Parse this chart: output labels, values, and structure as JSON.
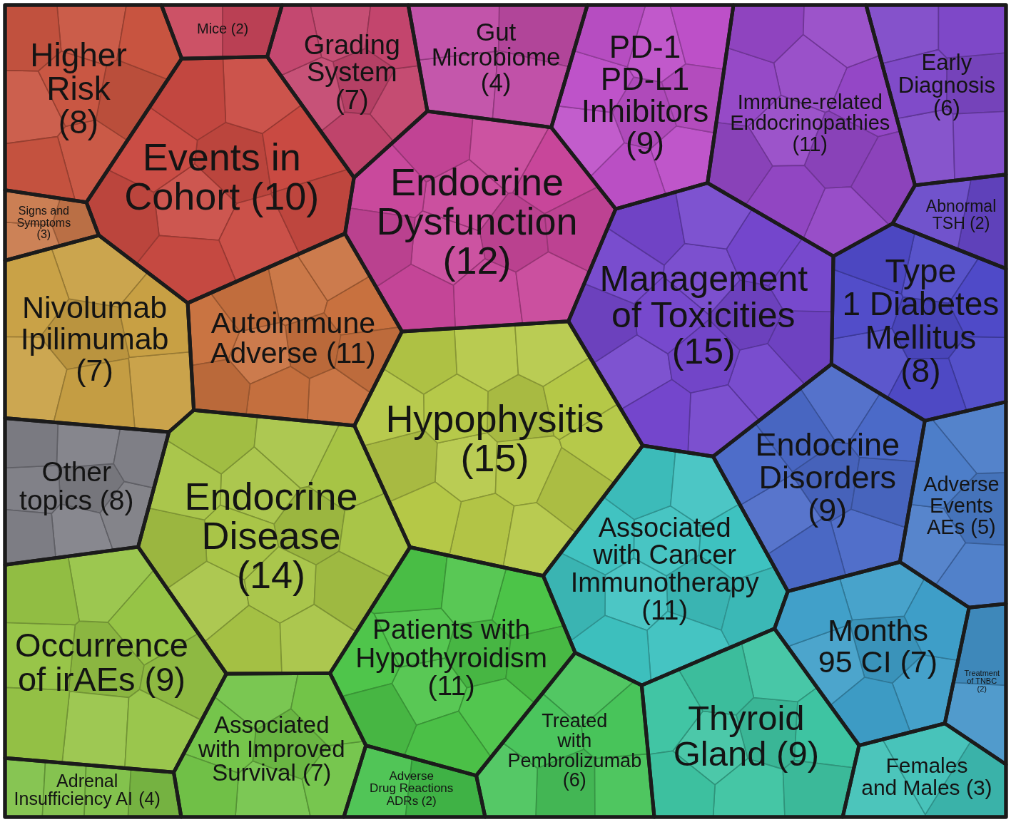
{
  "chart_data": {
    "type": "other",
    "categories": [
      "Higher Risk",
      "Mice",
      "Grading System",
      "Gut Microbiome",
      "PD-1 PD-L1 Inhibitors",
      "Immune-related Endocrinopathies",
      "Early Diagnosis",
      "Events in Cohort",
      "Endocrine Dysfunction",
      "Abnormal TSH",
      "Signs and Symptoms",
      "Management of Toxicities",
      "Type 1 Diabetes Mellitus",
      "Autoimmune Adverse",
      "Nivolumab Ipilimumab",
      "Hypophysitis",
      "Endocrine Disorders",
      "Other topics",
      "Endocrine Disease",
      "Adverse Events AEs",
      "Associated with Cancer Immunotherapy",
      "Occurrence of irAEs",
      "Patients with Hypothyroidism",
      "Months 95 CI",
      "Treatment of TNBC",
      "Associated with Improved Survival",
      "Thyroid Gland",
      "Treated with Pembrolizumab",
      "Females and Males",
      "Adrenal Insufficiency AI",
      "Adverse Drug Reactions ADRs"
    ],
    "values": [
      8,
      2,
      7,
      4,
      9,
      11,
      6,
      10,
      12,
      2,
      3,
      15,
      8,
      11,
      7,
      15,
      9,
      8,
      14,
      5,
      11,
      9,
      11,
      7,
      2,
      7,
      9,
      6,
      3,
      4,
      2
    ],
    "value_labels": [
      "(8)",
      "(2)",
      "(7)",
      "(4)",
      "(9)",
      "(11)",
      "(6)",
      "(10)",
      "(12)",
      "(2)",
      "(3)",
      "(15)",
      "(8)",
      "(11)",
      "(7)",
      "(15)",
      "(9)",
      "(8)",
      "(14)",
      "(5)",
      "(11)",
      "(9)",
      "(11)",
      "(7)",
      "(2)",
      "(7)",
      "(9)",
      "(6)",
      "(3)",
      "(4)",
      "(2)"
    ],
    "colors": [
      "#c85440",
      "#c8455a",
      "#c3456d",
      "#bf4aa5",
      "#bd50c8",
      "#9447c6",
      "#7e48c8",
      "#c94a42",
      "#c8469a",
      "#6646c8",
      "#c8784a",
      "#7446cc",
      "#4f4ac8",
      "#c8713f",
      "#c8a044",
      "#b5c847",
      "#4b6ac8",
      "#7f7f86",
      "#a7c445",
      "#4a7cc8",
      "#3ec2c0",
      "#96c446",
      "#4cc448",
      "#3e9ec8",
      "#4393c8",
      "#72c448",
      "#3ec4a2",
      "#48c45a",
      "#3ec0b6",
      "#7ec046",
      "#44c04a"
    ]
  }
}
